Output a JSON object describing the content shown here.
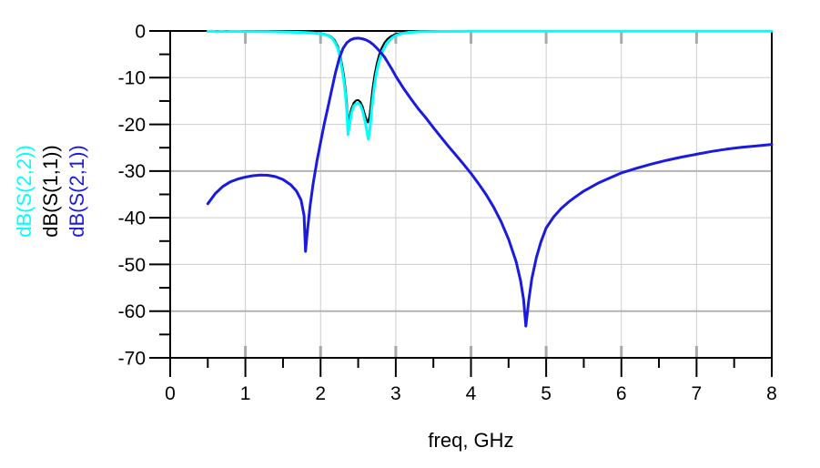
{
  "window": {
    "background": "#ffffff"
  },
  "chart_data": {
    "type": "line",
    "title": "",
    "xlabel": "freq, GHz",
    "ylabel": "",
    "xlim": [
      0,
      8
    ],
    "ylim": [
      -70,
      0
    ],
    "x_major_ticks": [
      0,
      1,
      2,
      3,
      4,
      5,
      6,
      7,
      8
    ],
    "x_minor_ticks": [
      0.5,
      1.5,
      2.5,
      3.5,
      4.5,
      5.5,
      6.5,
      7.5
    ],
    "y_major_ticks": [
      0,
      -10,
      -20,
      -30,
      -40,
      -50,
      -60,
      -70
    ],
    "y_minor_ticks": [
      -5,
      -15,
      -25,
      -35,
      -45,
      -55,
      -65
    ],
    "grid": {
      "show": true,
      "color": "#cdcdcd",
      "bold_color": "#b3b3b3",
      "bold_y_lines": [
        -30,
        -60
      ],
      "inner_tick_color": "#a9a9a9"
    },
    "legend_position": "left-rotated",
    "legend": [
      {
        "text": "dB(S(2,2))",
        "color": "#00ffff"
      },
      {
        "text": "dB(S(1,1))",
        "color": "#000000"
      },
      {
        "text": "dB(S(2,1))",
        "color": "#1b1be0"
      }
    ],
    "series": [
      {
        "id": "s11",
        "name": "dB(S(1,1))",
        "color": "#000000",
        "width": 2,
        "points": [
          [
            0.5,
            -0.08
          ],
          [
            0.8,
            -0.1
          ],
          [
            1.1,
            -0.12
          ],
          [
            1.4,
            -0.15
          ],
          [
            1.6,
            -0.2
          ],
          [
            1.8,
            -0.28
          ],
          [
            1.9,
            -0.36
          ],
          [
            2.0,
            -0.5
          ],
          [
            2.05,
            -0.62
          ],
          [
            2.1,
            -0.85
          ],
          [
            2.15,
            -1.3
          ],
          [
            2.19,
            -2.0
          ],
          [
            2.23,
            -3.3
          ],
          [
            2.26,
            -5.0
          ],
          [
            2.29,
            -7.5
          ],
          [
            2.31,
            -9.5
          ],
          [
            2.33,
            -12.0
          ],
          [
            2.35,
            -15.5
          ],
          [
            2.365,
            -19.4
          ],
          [
            2.38,
            -18.6
          ],
          [
            2.41,
            -16.6
          ],
          [
            2.44,
            -15.4
          ],
          [
            2.47,
            -14.9
          ],
          [
            2.5,
            -14.8
          ],
          [
            2.53,
            -15.2
          ],
          [
            2.56,
            -16.2
          ],
          [
            2.59,
            -17.9
          ],
          [
            2.61,
            -19.0
          ],
          [
            2.63,
            -19.6
          ],
          [
            2.65,
            -18.2
          ],
          [
            2.67,
            -15.4
          ],
          [
            2.69,
            -12.4
          ],
          [
            2.72,
            -9.2
          ],
          [
            2.75,
            -6.8
          ],
          [
            2.78,
            -5.0
          ],
          [
            2.81,
            -3.7
          ],
          [
            2.85,
            -2.5
          ],
          [
            2.89,
            -1.7
          ],
          [
            2.94,
            -1.1
          ],
          [
            3.0,
            -0.65
          ],
          [
            3.08,
            -0.4
          ],
          [
            3.17,
            -0.25
          ],
          [
            3.3,
            -0.14
          ],
          [
            3.6,
            -0.08
          ],
          [
            4.0,
            -0.05
          ],
          [
            5.0,
            -0.04
          ],
          [
            6.0,
            -0.04
          ],
          [
            7.0,
            -0.04
          ],
          [
            8.0,
            -0.04
          ]
        ]
      },
      {
        "id": "s22",
        "name": "dB(S(2,2))",
        "color": "#00ffff",
        "width": 3,
        "points": [
          [
            0.5,
            -0.1
          ],
          [
            0.55,
            -0.06
          ],
          [
            0.62,
            -0.15
          ],
          [
            0.68,
            -0.07
          ],
          [
            0.75,
            -0.14
          ],
          [
            0.82,
            -0.08
          ],
          [
            1.0,
            -0.12
          ],
          [
            1.3,
            -0.16
          ],
          [
            1.6,
            -0.24
          ],
          [
            1.8,
            -0.33
          ],
          [
            1.9,
            -0.44
          ],
          [
            2.0,
            -0.6
          ],
          [
            2.05,
            -0.75
          ],
          [
            2.1,
            -1.0
          ],
          [
            2.15,
            -1.5
          ],
          [
            2.19,
            -2.4
          ],
          [
            2.23,
            -3.8
          ],
          [
            2.26,
            -5.8
          ],
          [
            2.29,
            -8.6
          ],
          [
            2.31,
            -10.8
          ],
          [
            2.33,
            -13.5
          ],
          [
            2.35,
            -17.5
          ],
          [
            2.365,
            -22.2
          ],
          [
            2.38,
            -20.6
          ],
          [
            2.41,
            -17.6
          ],
          [
            2.44,
            -16.1
          ],
          [
            2.47,
            -15.6
          ],
          [
            2.5,
            -15.5
          ],
          [
            2.53,
            -15.9
          ],
          [
            2.56,
            -17.2
          ],
          [
            2.59,
            -19.2
          ],
          [
            2.61,
            -21.0
          ],
          [
            2.635,
            -23.2
          ],
          [
            2.66,
            -20.4
          ],
          [
            2.68,
            -16.6
          ],
          [
            2.71,
            -12.4
          ],
          [
            2.74,
            -9.2
          ],
          [
            2.77,
            -6.9
          ],
          [
            2.8,
            -5.3
          ],
          [
            2.84,
            -3.8
          ],
          [
            2.89,
            -2.5
          ],
          [
            2.94,
            -1.6
          ],
          [
            3.0,
            -0.95
          ],
          [
            3.08,
            -0.55
          ],
          [
            3.17,
            -0.32
          ],
          [
            3.3,
            -0.18
          ],
          [
            3.6,
            -0.1
          ],
          [
            4.0,
            -0.06
          ],
          [
            5.0,
            -0.05
          ],
          [
            6.0,
            -0.05
          ],
          [
            7.0,
            -0.05
          ],
          [
            8.0,
            -0.05
          ]
        ]
      },
      {
        "id": "s21",
        "name": "dB(S(2,1))",
        "color": "#1b1be0",
        "width": 3,
        "points": [
          [
            0.5,
            -37.0
          ],
          [
            0.6,
            -34.8
          ],
          [
            0.7,
            -33.3
          ],
          [
            0.8,
            -32.3
          ],
          [
            0.9,
            -31.7
          ],
          [
            1.0,
            -31.3
          ],
          [
            1.1,
            -31.0
          ],
          [
            1.2,
            -30.85
          ],
          [
            1.3,
            -30.9
          ],
          [
            1.4,
            -31.2
          ],
          [
            1.5,
            -31.8
          ],
          [
            1.6,
            -32.9
          ],
          [
            1.68,
            -34.3
          ],
          [
            1.74,
            -36.2
          ],
          [
            1.78,
            -39.5
          ],
          [
            1.8,
            -47.2
          ],
          [
            1.82,
            -43.5
          ],
          [
            1.86,
            -37.5
          ],
          [
            1.9,
            -32.8
          ],
          [
            1.95,
            -28.0
          ],
          [
            2.0,
            -23.8
          ],
          [
            2.05,
            -19.8
          ],
          [
            2.1,
            -16.2
          ],
          [
            2.15,
            -12.5
          ],
          [
            2.2,
            -8.8
          ],
          [
            2.25,
            -5.8
          ],
          [
            2.3,
            -3.7
          ],
          [
            2.35,
            -2.5
          ],
          [
            2.4,
            -1.9
          ],
          [
            2.45,
            -1.6
          ],
          [
            2.5,
            -1.55
          ],
          [
            2.55,
            -1.65
          ],
          [
            2.6,
            -1.9
          ],
          [
            2.65,
            -2.3
          ],
          [
            2.7,
            -2.9
          ],
          [
            2.75,
            -3.7
          ],
          [
            2.8,
            -4.6
          ],
          [
            2.85,
            -5.6
          ],
          [
            2.9,
            -6.9
          ],
          [
            2.95,
            -8.2
          ],
          [
            3.0,
            -9.7
          ],
          [
            3.1,
            -12.2
          ],
          [
            3.2,
            -14.5
          ],
          [
            3.3,
            -16.7
          ],
          [
            3.4,
            -18.6
          ],
          [
            3.5,
            -20.7
          ],
          [
            3.6,
            -22.7
          ],
          [
            3.7,
            -24.7
          ],
          [
            3.8,
            -26.6
          ],
          [
            3.9,
            -28.5
          ],
          [
            4.0,
            -30.5
          ],
          [
            4.1,
            -32.7
          ],
          [
            4.2,
            -35.0
          ],
          [
            4.3,
            -37.7
          ],
          [
            4.4,
            -40.8
          ],
          [
            4.5,
            -44.6
          ],
          [
            4.6,
            -49.4
          ],
          [
            4.66,
            -53.5
          ],
          [
            4.7,
            -57.5
          ],
          [
            4.73,
            -63.2
          ],
          [
            4.77,
            -57.5
          ],
          [
            4.81,
            -53.0
          ],
          [
            4.87,
            -48.5
          ],
          [
            4.93,
            -45.2
          ],
          [
            5.0,
            -42.2
          ],
          [
            5.1,
            -39.8
          ],
          [
            5.2,
            -38.0
          ],
          [
            5.3,
            -36.6
          ],
          [
            5.4,
            -35.4
          ],
          [
            5.5,
            -34.3
          ],
          [
            5.6,
            -33.4
          ],
          [
            5.7,
            -32.5
          ],
          [
            5.8,
            -31.8
          ],
          [
            5.9,
            -31.1
          ],
          [
            6.0,
            -30.4
          ],
          [
            6.2,
            -29.4
          ],
          [
            6.4,
            -28.5
          ],
          [
            6.6,
            -27.7
          ],
          [
            6.8,
            -27.0
          ],
          [
            7.0,
            -26.4
          ],
          [
            7.2,
            -25.8
          ],
          [
            7.4,
            -25.3
          ],
          [
            7.6,
            -24.9
          ],
          [
            7.8,
            -24.6
          ],
          [
            8.0,
            -24.3
          ]
        ]
      }
    ]
  }
}
